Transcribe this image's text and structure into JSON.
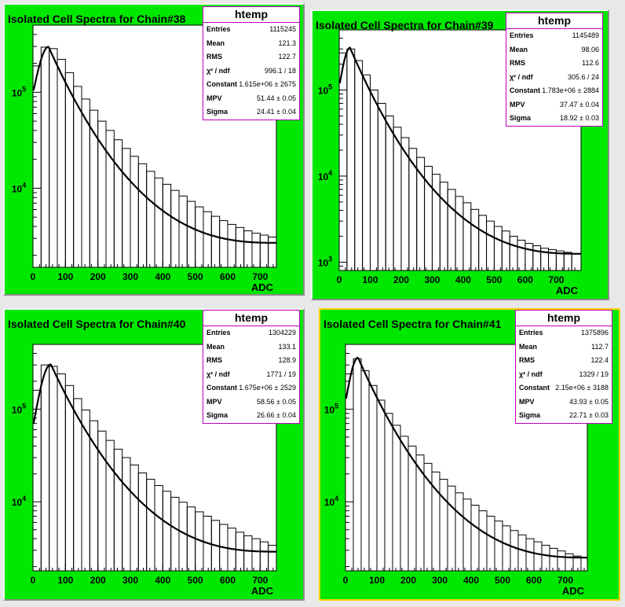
{
  "colors": {
    "frame": "#00e800",
    "statbox_border": "#c000c0",
    "selected_border": "#ffd000"
  },
  "chart_data": [
    {
      "type": "histogram",
      "title": "Isolated Cell Spectra for Chain#38",
      "xlabel": "ADC",
      "xlim": [
        0,
        750
      ],
      "log_y": true,
      "ylim": [
        1500,
        500000
      ],
      "x_ticks": [
        "0",
        "100",
        "200",
        "300",
        "400",
        "500",
        "600",
        "700"
      ],
      "y_ticks": [
        "10^5",
        "10^4"
      ],
      "stats_title": "htemp",
      "stats": [
        {
          "label": "Entries",
          "value": "1115245"
        },
        {
          "label": "Mean",
          "value": "121.3"
        },
        {
          "label": "RMS",
          "value": "122.7"
        },
        {
          "label": "χ² / ndf",
          "value": "996.1 / 18"
        },
        {
          "label": "Constant",
          "value": "1.615e+06 ± 2675"
        },
        {
          "label": "MPV",
          "value": "51.44 ± 0.05"
        },
        {
          "label": "Sigma",
          "value": "24.41 ± 0.04"
        }
      ],
      "bins_x": [
        0,
        25,
        50,
        75,
        100,
        125,
        150,
        175,
        200,
        225,
        250,
        275,
        300,
        325,
        350,
        375,
        400,
        425,
        450,
        475,
        500,
        525,
        550,
        575,
        600,
        625,
        650,
        675,
        700,
        725,
        750
      ],
      "bin_values": [
        188000,
        295000,
        285000,
        220000,
        160000,
        115000,
        85000,
        65000,
        50000,
        40000,
        32000,
        26000,
        21500,
        18000,
        15000,
        12800,
        11000,
        9500,
        8300,
        7300,
        6400,
        5700,
        5100,
        4600,
        4200,
        3900,
        3600,
        3400,
        3250,
        3100
      ],
      "fit": {
        "peak_x": 48,
        "peak_y": 298000,
        "start_y": 105000,
        "end_y": 2700
      }
    },
    {
      "type": "histogram",
      "title": "Isolated Cell Spectra for Chain#39",
      "xlabel": "ADC",
      "xlim": [
        0,
        780
      ],
      "log_y": true,
      "ylim": [
        800,
        500000
      ],
      "x_ticks": [
        "0",
        "100",
        "200",
        "300",
        "400",
        "500",
        "600",
        "700"
      ],
      "y_ticks": [
        "10^5",
        "10^4",
        "10^3"
      ],
      "stats_title": "htemp",
      "stats": [
        {
          "label": "Entries",
          "value": "1145489"
        },
        {
          "label": "Mean",
          "value": "98.06"
        },
        {
          "label": "RMS",
          "value": "112.6"
        },
        {
          "label": "χ² / ndf",
          "value": "305.6 / 24"
        },
        {
          "label": "Constant",
          "value": "1.783e+06 ± 2884"
        },
        {
          "label": "MPV",
          "value": "37.47 ± 0.04"
        },
        {
          "label": "Sigma",
          "value": "18.92 ± 0.03"
        }
      ],
      "bins_x": [
        0,
        25,
        50,
        75,
        100,
        125,
        150,
        175,
        200,
        225,
        250,
        275,
        300,
        325,
        350,
        375,
        400,
        425,
        450,
        475,
        500,
        525,
        550,
        575,
        600,
        625,
        650,
        675,
        700,
        725,
        750,
        780
      ],
      "bin_values": [
        270000,
        300000,
        220000,
        150000,
        100000,
        70000,
        50000,
        37000,
        28000,
        21000,
        16500,
        13000,
        10500,
        8500,
        7000,
        5800,
        4900,
        4100,
        3500,
        3000,
        2600,
        2300,
        2000,
        1800,
        1650,
        1550,
        1450,
        1400,
        1350,
        1300,
        1250
      ],
      "fit": {
        "peak_x": 35,
        "peak_y": 310000,
        "start_y": 120000,
        "end_y": 1250
      }
    },
    {
      "type": "histogram",
      "title": "Isolated Cell Spectra for Chain#40",
      "xlabel": "ADC",
      "xlim": [
        0,
        750
      ],
      "log_y": true,
      "ylim": [
        1800,
        500000
      ],
      "x_ticks": [
        "0",
        "100",
        "200",
        "300",
        "400",
        "500",
        "600",
        "700"
      ],
      "y_ticks": [
        "10^5",
        "10^4"
      ],
      "stats_title": "htemp",
      "stats": [
        {
          "label": "Entries",
          "value": "1304229"
        },
        {
          "label": "Mean",
          "value": "133.1"
        },
        {
          "label": "RMS",
          "value": "128.9"
        },
        {
          "label": "χ² / ndf",
          "value": "1771 / 19"
        },
        {
          "label": "Constant",
          "value": "1.675e+06 ± 2529"
        },
        {
          "label": "MPV",
          "value": "58.56 ± 0.05"
        },
        {
          "label": "Sigma",
          "value": "26.66 ± 0.04"
        }
      ],
      "bins_x": [
        0,
        25,
        50,
        75,
        100,
        125,
        150,
        175,
        200,
        225,
        250,
        275,
        300,
        325,
        350,
        375,
        400,
        425,
        450,
        475,
        500,
        525,
        550,
        575,
        600,
        625,
        650,
        675,
        700,
        725,
        750
      ],
      "bin_values": [
        160000,
        300000,
        290000,
        240000,
        180000,
        130000,
        98000,
        75000,
        58000,
        46000,
        37000,
        30000,
        25000,
        20500,
        17500,
        15000,
        13000,
        11200,
        9900,
        8800,
        7800,
        7000,
        6300,
        5700,
        5200,
        4700,
        4300,
        4000,
        3700,
        3400
      ],
      "fit": {
        "peak_x": 55,
        "peak_y": 305000,
        "start_y": 70000,
        "end_y": 2900
      }
    },
    {
      "type": "histogram",
      "title": "Isolated Cell Spectra for Chain#41",
      "xlabel": "ADC",
      "xlim": [
        0,
        770
      ],
      "log_y": true,
      "ylim": [
        1800,
        500000
      ],
      "x_ticks": [
        "0",
        "100",
        "200",
        "300",
        "400",
        "500",
        "600",
        "700"
      ],
      "y_ticks": [
        "10^5",
        "10^4"
      ],
      "stats_title": "htemp",
      "stats": [
        {
          "label": "Entries",
          "value": "1375896"
        },
        {
          "label": "Mean",
          "value": "112.7"
        },
        {
          "label": "RMS",
          "value": "122.4"
        },
        {
          "label": "χ² / ndf",
          "value": "1329 / 19"
        },
        {
          "label": "Constant",
          "value": "2.15e+06 ± 3188"
        },
        {
          "label": "MPV",
          "value": "43.93 ± 0.05"
        },
        {
          "label": "Sigma",
          "value": "22.71 ± 0.03"
        }
      ],
      "bins_x": [
        0,
        25,
        50,
        75,
        100,
        125,
        150,
        175,
        200,
        225,
        250,
        275,
        300,
        325,
        350,
        375,
        400,
        425,
        450,
        475,
        500,
        525,
        550,
        575,
        600,
        625,
        650,
        675,
        700,
        725,
        750,
        770
      ],
      "bin_values": [
        240000,
        350000,
        260000,
        180000,
        125000,
        90000,
        67000,
        51000,
        40000,
        32000,
        26000,
        21000,
        17500,
        14800,
        12500,
        10700,
        9200,
        8000,
        7000,
        6200,
        5500,
        4900,
        4400,
        4000,
        3700,
        3400,
        3150,
        2950,
        2750,
        2600,
        2500
      ],
      "fit": {
        "peak_x": 40,
        "peak_y": 360000,
        "start_y": 130000,
        "end_y": 2500
      }
    }
  ]
}
